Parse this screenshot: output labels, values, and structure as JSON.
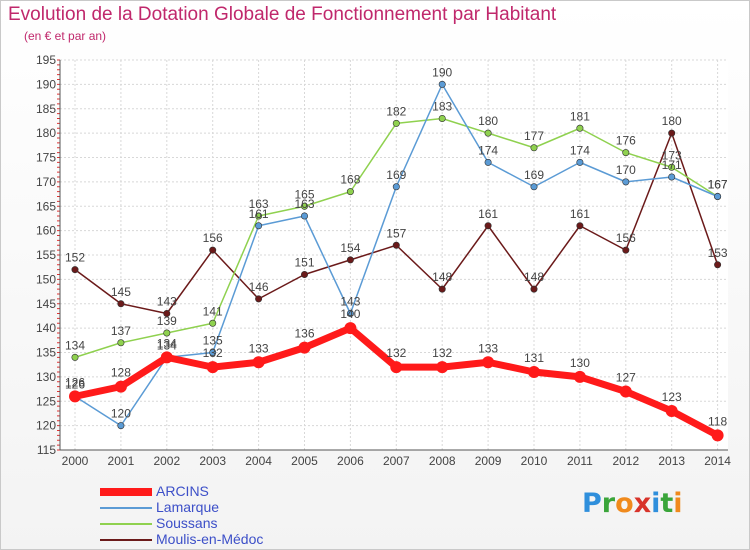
{
  "title": "Evolution de la Dotation Globale de Fonctionnement par Habitant",
  "subtitle": "(en € et par an)",
  "logo": {
    "text": "Proxiti",
    "letters": [
      {
        "ch": "P",
        "color": "#2f8fdc"
      },
      {
        "ch": "r",
        "color": "#3aa53a"
      },
      {
        "ch": "o",
        "color": "#f08a1c"
      },
      {
        "ch": "x",
        "color": "#d8332a"
      },
      {
        "ch": "i",
        "color": "#2f8fdc"
      },
      {
        "ch": "t",
        "color": "#3aa53a"
      },
      {
        "ch": "i",
        "color": "#f08a1c"
      }
    ]
  },
  "chart_data": {
    "type": "line",
    "x": [
      2000,
      2001,
      2002,
      2003,
      2004,
      2005,
      2006,
      2007,
      2008,
      2009,
      2010,
      2011,
      2012,
      2013,
      2014
    ],
    "xlabel": "",
    "ylabel": "",
    "ylim": [
      115,
      195
    ],
    "ytick_step": 5,
    "grid": true,
    "legend_position": "bottom-left",
    "series": [
      {
        "name": "ARCINS",
        "color": "#ff1a1a",
        "values": [
          126,
          128,
          134,
          132,
          133,
          136,
          140,
          132,
          132,
          133,
          131,
          130,
          127,
          123,
          118
        ]
      },
      {
        "name": "Lamarque",
        "color": "#5b9bd5",
        "values": [
          126,
          120,
          134,
          135,
          161,
          163,
          143,
          169,
          190,
          174,
          169,
          174,
          170,
          171,
          167
        ]
      },
      {
        "name": "Soussans",
        "color": "#8fd14f",
        "values": [
          134,
          137,
          139,
          141,
          163,
          165,
          168,
          182,
          183,
          180,
          177,
          181,
          176,
          173,
          167
        ]
      },
      {
        "name": "Moulis-en-Médoc",
        "color": "#6b1a1a",
        "values": [
          152,
          145,
          143,
          156,
          146,
          151,
          154,
          157,
          148,
          161,
          148,
          161,
          156,
          180,
          153
        ]
      }
    ]
  }
}
